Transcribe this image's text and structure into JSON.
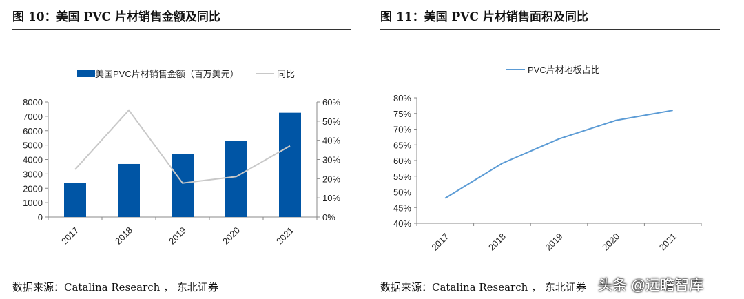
{
  "panels": [
    {
      "title": "图 10：美国 PVC 片材销售金额及同比",
      "source": "数据来源：Catalina Research ， 东北证券"
    },
    {
      "title": "图 11：美国 PVC 片材销售面积及同比",
      "source": "数据来源：Catalina Research ， 东北证券"
    }
  ],
  "watermark": "头条 @远瞻智库",
  "chart_data": [
    {
      "type": "bar+line",
      "categories": [
        "2017",
        "2018",
        "2019",
        "2020",
        "2021"
      ],
      "series": [
        {
          "name": "美国PVC片材销售金额（百万美元）",
          "type": "bar",
          "axis": "left",
          "color": "#0055A5",
          "values": [
            2350,
            3690,
            4360,
            5270,
            7250
          ]
        },
        {
          "name": "同比",
          "type": "line",
          "axis": "right",
          "color": "#C8C8C8",
          "values": [
            24.8,
            55.7,
            17.7,
            21.1,
            37.1
          ]
        }
      ],
      "ylim": [
        0,
        8000
      ],
      "yticks": [
        "0",
        "1000",
        "2000",
        "3000",
        "4000",
        "5000",
        "6000",
        "7000",
        "8000"
      ],
      "y2lim": [
        0,
        60
      ],
      "y2ticks": [
        "0%",
        "10%",
        "20%",
        "30%",
        "40%",
        "50%",
        "60%"
      ],
      "legend": "top",
      "grid": false
    },
    {
      "type": "line",
      "categories": [
        "2017",
        "2018",
        "2019",
        "2020",
        "2021"
      ],
      "series": [
        {
          "name": "PVC片材地板占比",
          "color": "#5B9BD5",
          "values": [
            48.0,
            59.1,
            66.9,
            72.8,
            76.0
          ]
        }
      ],
      "ylim": [
        40,
        80
      ],
      "yticks": [
        "40%",
        "45%",
        "50%",
        "55%",
        "60%",
        "65%",
        "70%",
        "75%",
        "80%"
      ],
      "legend": "top",
      "grid": false
    }
  ]
}
